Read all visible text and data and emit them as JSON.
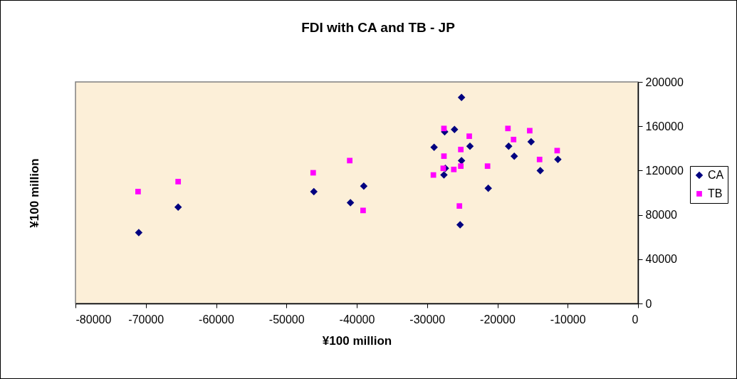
{
  "chart_data": {
    "type": "scatter",
    "title": "FDI with CA and TB - JP",
    "xlabel": "¥100 million",
    "ylabel": "¥100 million",
    "xlim": [
      -80000,
      0
    ],
    "xticks": [
      -80000,
      -70000,
      -60000,
      -50000,
      -40000,
      -30000,
      -20000,
      -10000,
      0
    ],
    "ylim": [
      0,
      200000
    ],
    "yticks": [
      0,
      40000,
      80000,
      120000,
      160000,
      200000
    ],
    "grid": false,
    "legend": "right",
    "series": [
      {
        "name": "CA",
        "color": "#000080",
        "marker": "diamond",
        "x": [
          -71000,
          -65400,
          -46100,
          -40900,
          -39000,
          -25100,
          -27500,
          -26100,
          -29000,
          -23900,
          -25100,
          -27400,
          -27600,
          -25300,
          -21300,
          -18400,
          -17600,
          -15200,
          -13900,
          -11400
        ],
        "values": [
          64000,
          87000,
          101000,
          91000,
          106000,
          186000,
          155000,
          157000,
          141000,
          142000,
          129000,
          122000,
          116000,
          71000,
          104000,
          142000,
          133000,
          146000,
          120000,
          130000
        ]
      },
      {
        "name": "TB",
        "color": "#ff00ff",
        "marker": "square",
        "x": [
          -71100,
          -65400,
          -46200,
          -41000,
          -39100,
          -27600,
          -24000,
          -25200,
          -27600,
          -27700,
          -26200,
          -25200,
          -29100,
          -25400,
          -21400,
          -18500,
          -17700,
          -15400,
          -14000,
          -11500
        ],
        "values": [
          101000,
          110000,
          118000,
          129000,
          84000,
          158000,
          151000,
          139000,
          133000,
          122000,
          121000,
          124000,
          116000,
          88000,
          124000,
          158000,
          148000,
          156000,
          130000,
          138000
        ]
      }
    ]
  }
}
